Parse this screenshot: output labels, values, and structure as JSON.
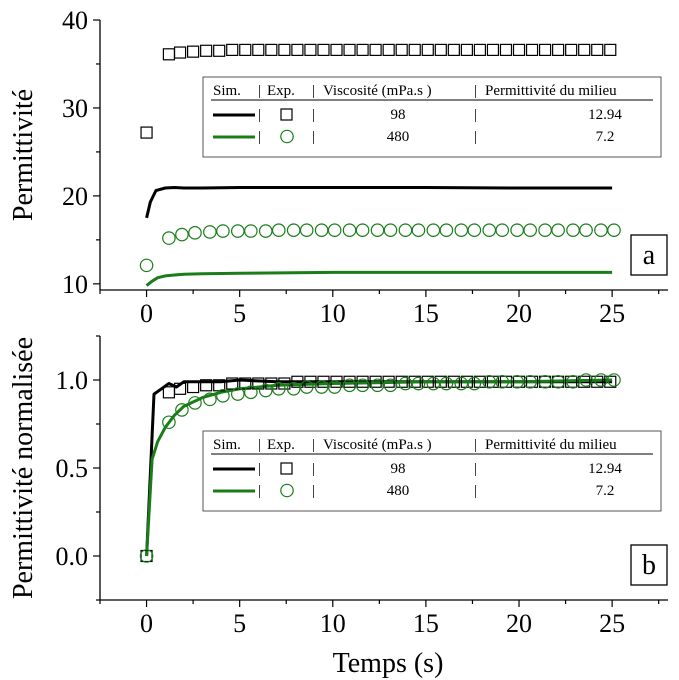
{
  "colors": {
    "black": "#000000",
    "green": "#1a7d1a"
  },
  "chart_data": [
    {
      "type": "line",
      "panel_label": "a",
      "title": "",
      "ylabel": "Permittivité",
      "xlabel": "",
      "xlim": [
        -2.5,
        28
      ],
      "ylim": [
        9.3,
        40
      ],
      "xticks": [
        0,
        5,
        10,
        15,
        20,
        25
      ],
      "yticks": [
        10,
        20,
        30,
        40
      ],
      "legend": {
        "placement": "top-right",
        "headers": [
          "Sim.",
          "|",
          "Exp.",
          "|",
          "Viscosité (mPa.s )",
          "|",
          "Permittivité du milieu"
        ],
        "rows": [
          {
            "sim_color": "#000000",
            "exp_marker": "square",
            "viscosity": "98",
            "medium_permittivity": "12.94"
          },
          {
            "sim_color": "#1a7d1a",
            "exp_marker": "circle",
            "viscosity": "480",
            "medium_permittivity": "7.2"
          }
        ]
      },
      "series": [
        {
          "kind": "sim",
          "color": "#000000",
          "x": [
            0,
            0.2,
            0.5,
            1,
            1.5,
            2,
            3,
            5,
            10,
            15,
            20,
            25
          ],
          "y": [
            17.5,
            19.3,
            20.6,
            20.9,
            20.95,
            20.9,
            20.9,
            20.95,
            20.95,
            20.95,
            20.9,
            20.9
          ]
        },
        {
          "kind": "sim",
          "color": "#1a7d1a",
          "x": [
            0,
            0.3,
            0.6,
            1,
            1.5,
            2,
            3,
            5,
            10,
            15,
            20,
            25
          ],
          "y": [
            9.8,
            10.3,
            10.7,
            10.9,
            11.0,
            11.1,
            11.15,
            11.2,
            11.3,
            11.3,
            11.3,
            11.3
          ]
        },
        {
          "kind": "exp",
          "marker": "square",
          "color": "#000000",
          "x": [
            0,
            1.2,
            1.8,
            2.5,
            3.2,
            3.9,
            4.6,
            5.3,
            6.0,
            6.7,
            7.4,
            8.1,
            8.8,
            9.5,
            10.2,
            10.9,
            11.6,
            12.3,
            13.0,
            13.7,
            14.4,
            15.1,
            15.8,
            16.5,
            17.2,
            17.9,
            18.6,
            19.3,
            20.0,
            20.7,
            21.4,
            22.1,
            22.8,
            23.5,
            24.2,
            24.9
          ],
          "y": [
            27.2,
            36.1,
            36.3,
            36.4,
            36.5,
            36.5,
            36.6,
            36.6,
            36.6,
            36.6,
            36.6,
            36.6,
            36.6,
            36.6,
            36.6,
            36.6,
            36.6,
            36.6,
            36.6,
            36.6,
            36.6,
            36.6,
            36.6,
            36.6,
            36.6,
            36.6,
            36.6,
            36.6,
            36.6,
            36.6,
            36.6,
            36.6,
            36.6,
            36.6,
            36.6,
            36.6
          ]
        },
        {
          "kind": "exp",
          "marker": "circle",
          "color": "#1a7d1a",
          "x": [
            0,
            1.2,
            1.9,
            2.6,
            3.4,
            4.1,
            4.9,
            5.6,
            6.4,
            7.1,
            7.9,
            8.6,
            9.4,
            10.1,
            10.9,
            11.6,
            12.4,
            13.1,
            13.9,
            14.6,
            15.4,
            16.1,
            16.9,
            17.6,
            18.4,
            19.1,
            19.9,
            20.6,
            21.4,
            22.1,
            22.9,
            23.6,
            24.4,
            25.1
          ],
          "y": [
            12.1,
            15.2,
            15.6,
            15.8,
            15.9,
            16.0,
            16.0,
            16.0,
            16.0,
            16.1,
            16.1,
            16.1,
            16.1,
            16.1,
            16.1,
            16.1,
            16.1,
            16.1,
            16.1,
            16.1,
            16.1,
            16.1,
            16.1,
            16.1,
            16.1,
            16.1,
            16.1,
            16.1,
            16.1,
            16.1,
            16.1,
            16.1,
            16.1,
            16.1
          ]
        }
      ]
    },
    {
      "type": "line",
      "panel_label": "b",
      "title": "",
      "ylabel": "Permittivité normalisée",
      "xlabel": "Temps (s)",
      "xlim": [
        -2.5,
        28
      ],
      "ylim": [
        -0.25,
        1.25
      ],
      "xticks": [
        0,
        5,
        10,
        15,
        20,
        25
      ],
      "yticks": [
        0.0,
        0.5,
        1.0
      ],
      "yticklabels": [
        "0.0",
        "0.5",
        "1.0"
      ],
      "legend": {
        "placement": "center-right",
        "headers": [
          "Sim.",
          "|",
          "Exp.",
          "|",
          "Viscosité (mPa.s )",
          "|",
          "Permittivité du milieu"
        ],
        "rows": [
          {
            "sim_color": "#000000",
            "exp_marker": "square",
            "viscosity": "98",
            "medium_permittivity": "12.94"
          },
          {
            "sim_color": "#1a7d1a",
            "exp_marker": "circle",
            "viscosity": "480",
            "medium_permittivity": "7.2"
          }
        ]
      },
      "series": [
        {
          "kind": "sim",
          "color": "#000000",
          "x": [
            0,
            0.4,
            0.8,
            1.2,
            1.6,
            2.0,
            3,
            4,
            5,
            7,
            10,
            15,
            20,
            25
          ],
          "y": [
            0,
            0.92,
            0.95,
            0.98,
            0.96,
            0.99,
            0.99,
            0.99,
            1.0,
            0.99,
            0.99,
            0.99,
            0.99,
            0.99
          ]
        },
        {
          "kind": "sim",
          "color": "#1a7d1a",
          "x": [
            0,
            0.3,
            0.6,
            1,
            1.5,
            2,
            3,
            4,
            5,
            7,
            10,
            15,
            20,
            25
          ],
          "y": [
            0,
            0.55,
            0.65,
            0.73,
            0.8,
            0.85,
            0.9,
            0.93,
            0.95,
            0.97,
            0.98,
            0.99,
            0.99,
            1.0
          ]
        },
        {
          "kind": "exp",
          "marker": "square",
          "color": "#000000",
          "x": [
            0,
            1.2,
            1.8,
            2.5,
            3.2,
            3.9,
            4.6,
            5.3,
            6.0,
            6.7,
            7.4,
            8.1,
            8.8,
            9.5,
            10.2,
            10.9,
            11.6,
            12.3,
            13.0,
            13.7,
            14.4,
            15.1,
            15.8,
            16.5,
            17.2,
            17.9,
            18.6,
            19.3,
            20.0,
            20.7,
            21.4,
            22.1,
            22.8,
            23.5,
            24.2,
            24.9
          ],
          "y": [
            0,
            0.93,
            0.95,
            0.96,
            0.97,
            0.97,
            0.98,
            0.98,
            0.98,
            0.98,
            0.98,
            0.99,
            0.99,
            0.99,
            0.99,
            0.99,
            0.99,
            0.99,
            0.99,
            0.99,
            0.99,
            0.99,
            0.99,
            0.99,
            0.99,
            0.99,
            0.99,
            0.99,
            0.99,
            0.99,
            0.99,
            0.99,
            0.99,
            0.99,
            0.99,
            0.99
          ]
        },
        {
          "kind": "exp",
          "marker": "circle",
          "color": "#1a7d1a",
          "x": [
            0,
            1.2,
            1.9,
            2.6,
            3.4,
            4.1,
            4.9,
            5.6,
            6.4,
            7.1,
            7.9,
            8.6,
            9.4,
            10.1,
            10.9,
            11.6,
            12.4,
            13.1,
            13.9,
            14.6,
            15.4,
            16.1,
            16.9,
            17.6,
            18.4,
            19.1,
            19.9,
            20.6,
            21.4,
            22.1,
            22.9,
            23.6,
            24.4,
            25.1
          ],
          "y": [
            0,
            0.76,
            0.83,
            0.87,
            0.89,
            0.91,
            0.92,
            0.93,
            0.94,
            0.95,
            0.95,
            0.96,
            0.96,
            0.96,
            0.97,
            0.97,
            0.97,
            0.97,
            0.98,
            0.98,
            0.98,
            0.98,
            0.98,
            0.98,
            0.99,
            0.99,
            0.99,
            0.99,
            0.99,
            0.99,
            0.99,
            1.0,
            1.0,
            1.0
          ]
        }
      ]
    }
  ]
}
